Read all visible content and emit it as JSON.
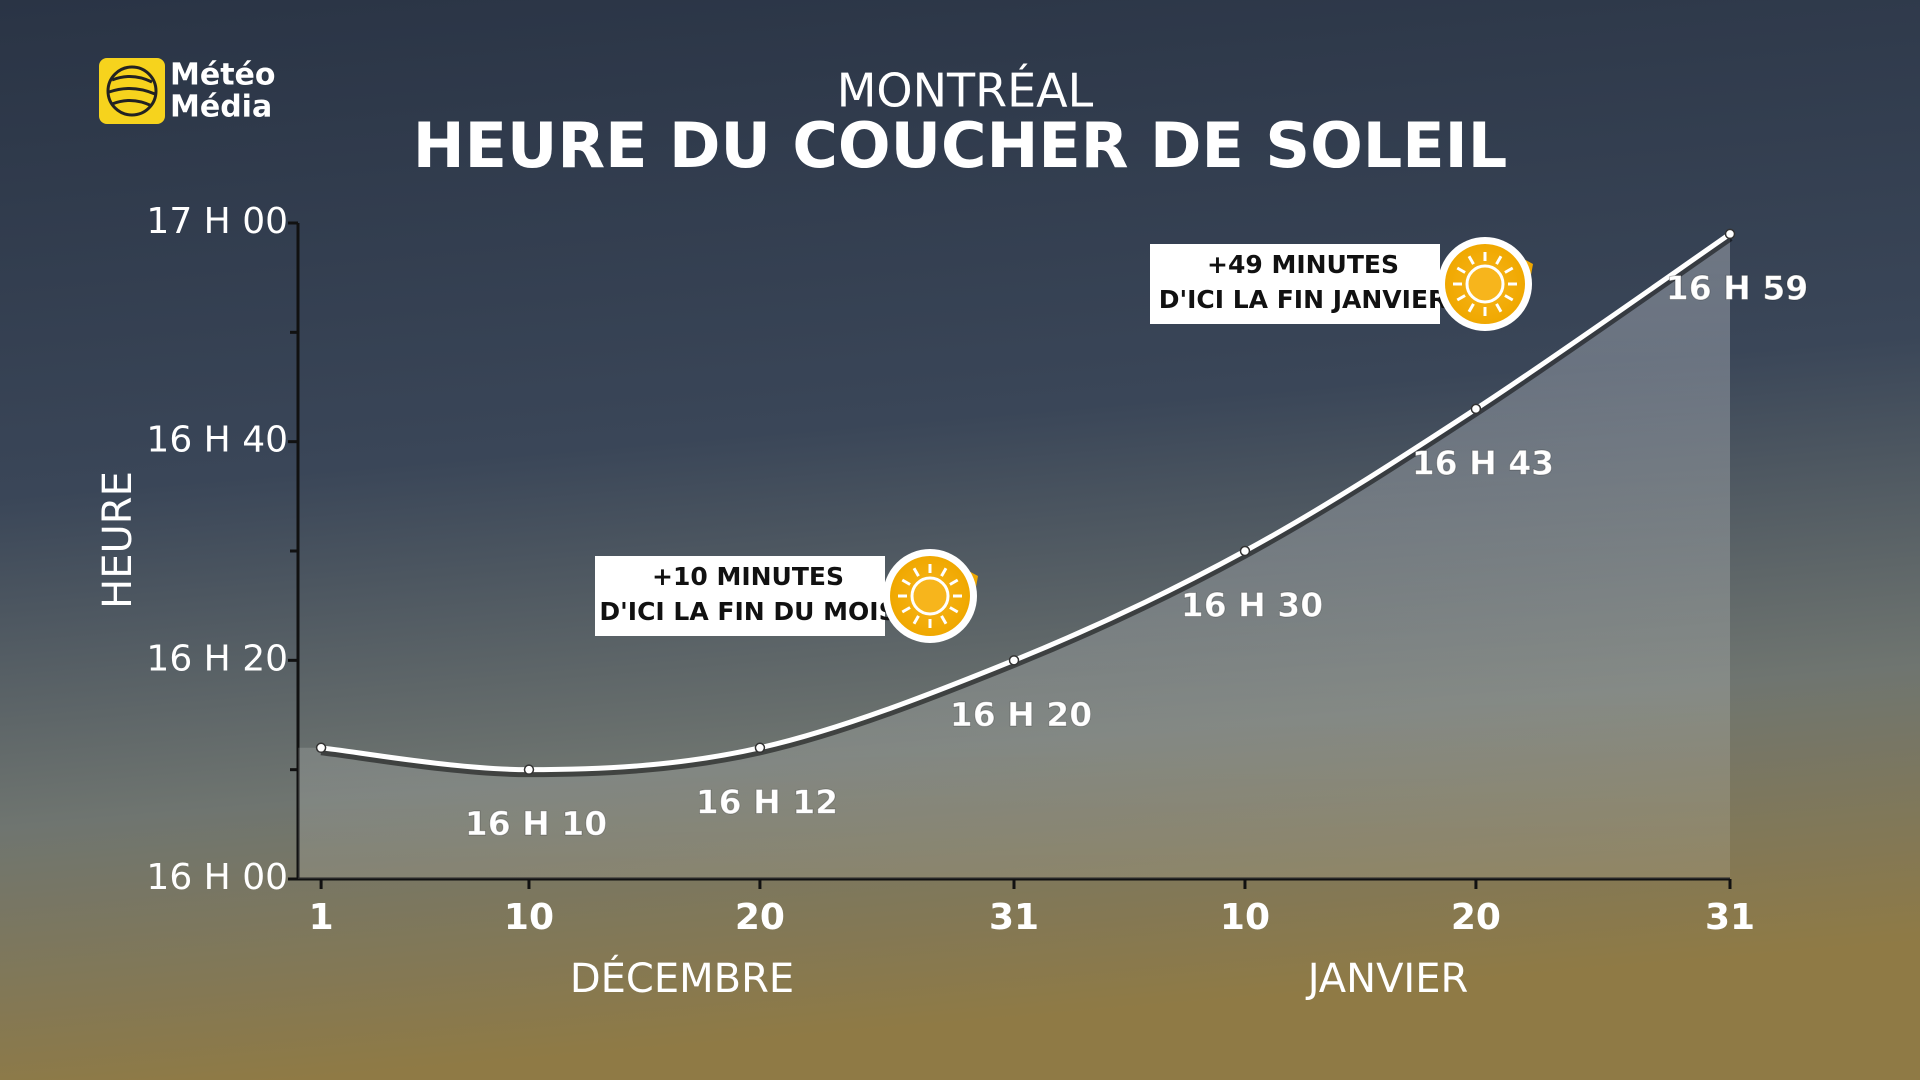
{
  "logo": {
    "line1": "Météo",
    "line2": "Média"
  },
  "chart_data": {
    "type": "line",
    "title": "MONTRÉAL",
    "subtitle": "HEURE DU COUCHER DE SOLEIL",
    "y_label": "HEURE",
    "x": [
      0,
      9,
      19,
      30,
      40,
      50,
      61
    ],
    "values": [
      972,
      970,
      972,
      980,
      990,
      1003,
      1019
    ],
    "value_labels": [
      null,
      "16 H 10",
      "16 H 12",
      "16 H 20",
      "16 H 30",
      "16 H 43",
      "16 H 59"
    ],
    "color": "#ffffff",
    "xlim": [
      -1,
      61
    ],
    "xticks": [
      {
        "value": 0,
        "label": "1"
      },
      {
        "value": 9,
        "label": "10"
      },
      {
        "value": 19,
        "label": "20"
      },
      {
        "value": 30,
        "label": "31"
      },
      {
        "value": 40,
        "label": "10"
      },
      {
        "value": 50,
        "label": "20"
      },
      {
        "value": 61,
        "label": "31"
      }
    ],
    "x_groups": [
      "DÉCEMBRE",
      "JANVIER"
    ],
    "ylim": [
      960,
      1020
    ],
    "yticks": [
      {
        "value": 960,
        "label": "16 H 00"
      },
      {
        "value": 980,
        "label": "16 H 20"
      },
      {
        "value": 1000,
        "label": "16 H 40"
      },
      {
        "value": 1020,
        "label": "17 H 00"
      }
    ],
    "yminorticks": [
      970,
      990,
      1010
    ],
    "annotations": [
      {
        "lines": [
          "+10 MINUTES",
          "D'ICI LA FIN DU MOIS"
        ]
      },
      {
        "lines": [
          "+49 MINUTES",
          "D'ICI LA FIN JANVIER"
        ]
      }
    ]
  }
}
